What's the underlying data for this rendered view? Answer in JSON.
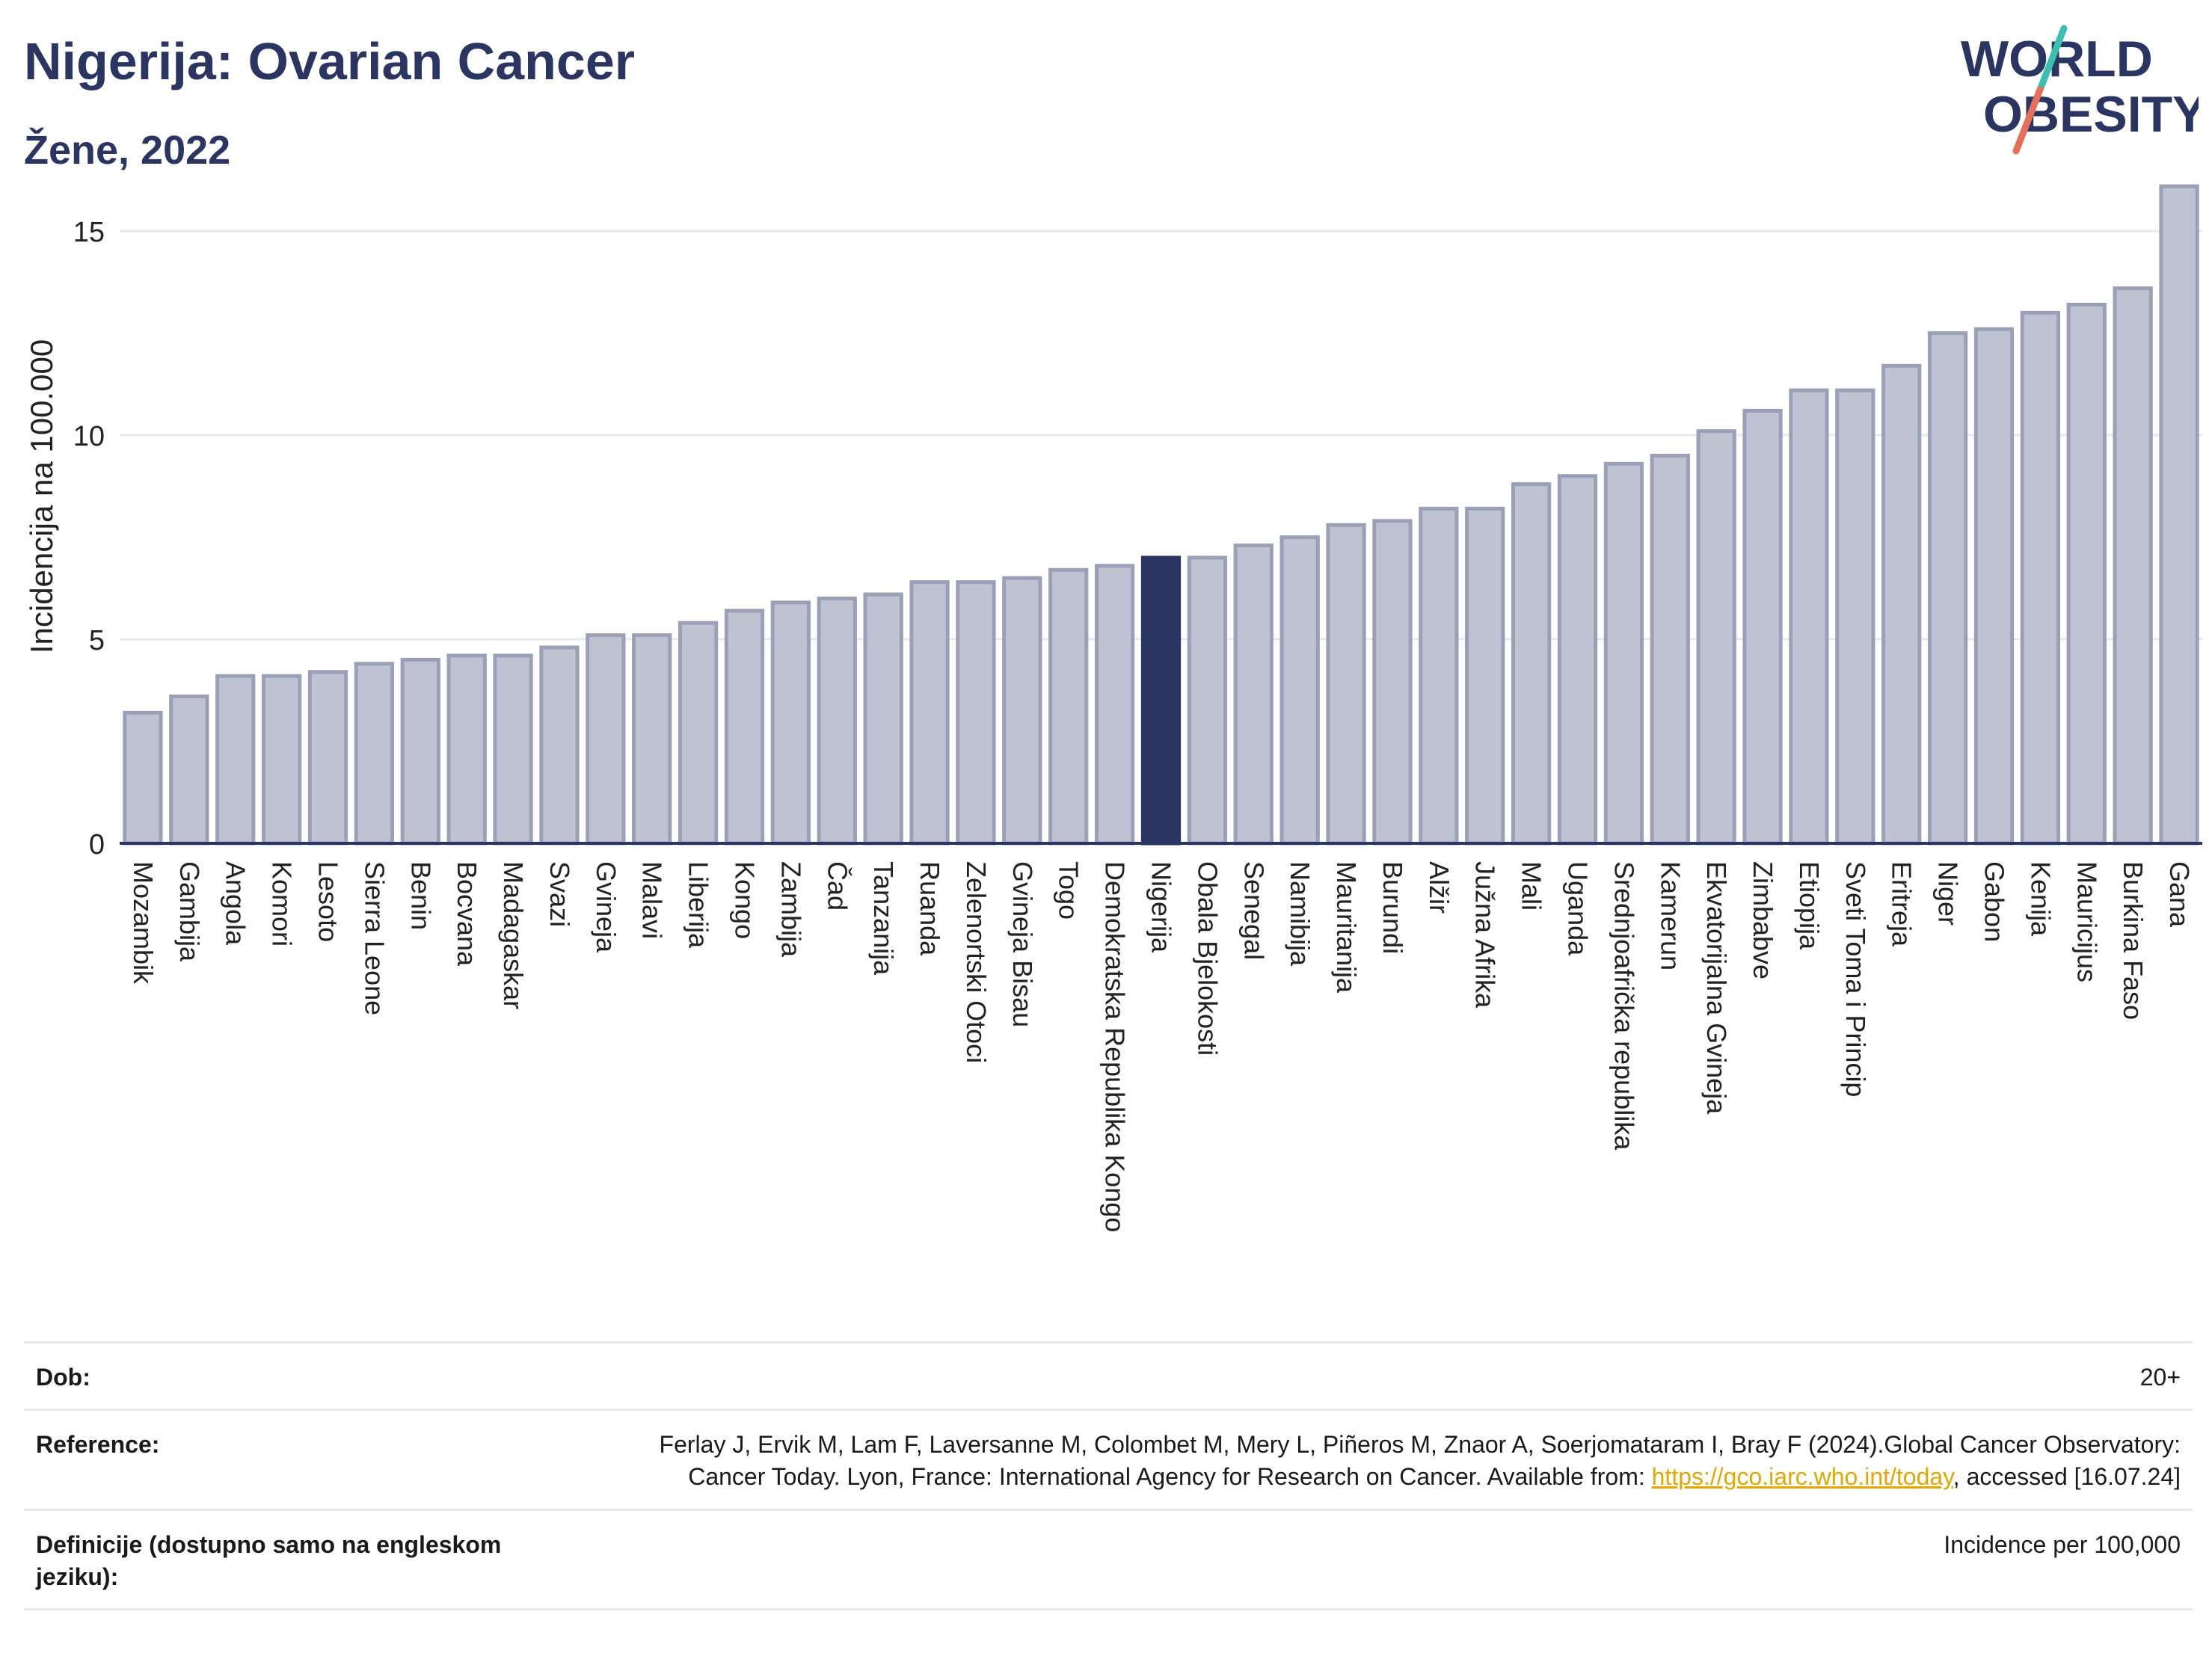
{
  "header": {
    "title": "Nigerija: Ovarian Cancer",
    "subtitle": "Žene, 2022",
    "logo_line1": "WORLD",
    "logo_line2": "OBESITY"
  },
  "colors": {
    "bar": "#bfc3d1",
    "bar_stroke": "#9aa0b8",
    "highlight": "#2b3561",
    "grid": "#e8e9ee",
    "logo_teal": "#3bbfb0",
    "logo_coral": "#e76f5a"
  },
  "chart_data": {
    "type": "bar",
    "ylabel": "Incidencija na 100.000",
    "ylim": [
      0,
      17
    ],
    "yticks": [
      0,
      5,
      10,
      15
    ],
    "grid": true,
    "highlight": "Nigerija",
    "categories": [
      "Mozambik",
      "Gambija",
      "Angola",
      "Komori",
      "Lesoto",
      "Sierra Leone",
      "Benin",
      "Bocvana",
      "Madagaskar",
      "Svazi",
      "Gvineja",
      "Malavi",
      "Liberija",
      "Kongo",
      "Zambija",
      "Čad",
      "Tanzanija",
      "Ruanda",
      "Zelenortski Otoci",
      "Gvineja Bisau",
      "Togo",
      "Demokratska Republika Kongo",
      "Nigerija",
      "Obala Bjelokosti",
      "Senegal",
      "Namibija",
      "Mauritanija",
      "Burundi",
      "Alžir",
      "Južna Afrika",
      "Mali",
      "Uganda",
      "Srednjoafrička republika",
      "Kamerun",
      "Ekvatorijalna Gvineja",
      "Zimbabve",
      "Etiopija",
      "Sveti Toma i Princip",
      "Eritreja",
      "Niger",
      "Gabon",
      "Kenija",
      "Mauricijus",
      "Burkina Faso",
      "Gana"
    ],
    "values": [
      3.2,
      3.6,
      4.1,
      4.1,
      4.2,
      4.4,
      4.5,
      4.6,
      4.6,
      4.8,
      5.1,
      5.1,
      5.4,
      5.7,
      5.9,
      6.0,
      6.1,
      6.4,
      6.4,
      6.5,
      6.7,
      6.8,
      7.0,
      7.0,
      7.3,
      7.5,
      7.8,
      7.9,
      8.2,
      8.2,
      8.8,
      9.0,
      9.3,
      9.5,
      10.1,
      10.6,
      11.1,
      11.1,
      11.7,
      12.5,
      12.6,
      13.0,
      13.2,
      13.6,
      16.1
    ]
  },
  "footer": {
    "rows": [
      {
        "label": "Dob:",
        "value": "20+"
      },
      {
        "label": "Reference:",
        "value_before_link": "Ferlay J, Ervik M, Lam F, Laversanne M, Colombet M, Mery L, Piñeros M, Znaor A, Soerjomataram I, Bray F (2024).Global Cancer Observatory: Cancer Today. Lyon, France: International Agency for Research on Cancer. Available from: ",
        "link": "https://gco.iarc.who.int/today",
        "value_after_link": ", accessed [16.07.24]"
      },
      {
        "label": "Definicije (dostupno samo na engleskom jeziku):",
        "value": "Incidence per 100,000"
      }
    ]
  }
}
